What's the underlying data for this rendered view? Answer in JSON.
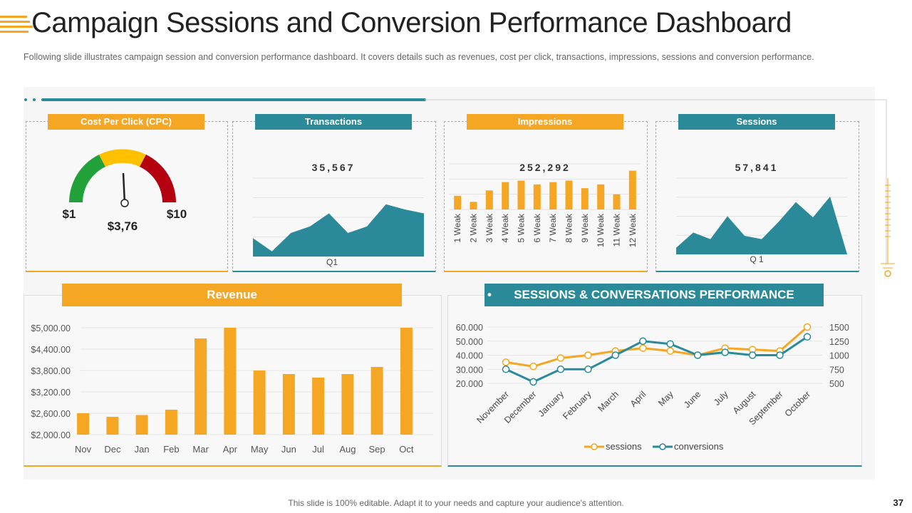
{
  "header": {
    "title": "Campaign Sessions and Conversion Performance Dashboard",
    "subtitle": "Following slide illustrates campaign session and conversion performance dashboard. It covers details such as revenues, cost per click, transactions, impressions, sessions and conversion performance."
  },
  "colors": {
    "orange": "#f5a623",
    "teal": "#2a8a99",
    "green": "#22a03a",
    "yellow": "#ffc000",
    "red": "#b50010"
  },
  "cpc": {
    "label": "Cost Per Click (CPC)",
    "min_label": "$1",
    "max_label": "$10",
    "value_label": "$3,76",
    "gauge_min": 1,
    "gauge_max": 10,
    "gauge_value": 3.76
  },
  "transactions": {
    "label": "Transactions",
    "total": "35,567",
    "x_label": "Q1"
  },
  "impressions": {
    "label": "Impressions",
    "total": "252,292"
  },
  "sessions_card": {
    "label": "Sessions",
    "total": "57,841",
    "x_label": "Q 1"
  },
  "chart_data": [
    {
      "id": "transactions",
      "type": "area",
      "title": "Transactions",
      "x": [
        1,
        2,
        3,
        4,
        5,
        6,
        7,
        8,
        9,
        10
      ],
      "values": [
        14,
        4,
        18,
        23,
        33,
        18,
        23,
        40,
        36,
        33
      ],
      "ylim": [
        0,
        60
      ],
      "xlabel": "Q1"
    },
    {
      "id": "impressions",
      "type": "bar",
      "title": "Impressions",
      "categories": [
        "1 Weak",
        "2 Weak",
        "3 Weak",
        "4 Weak",
        "5 Weak",
        "6 Weak",
        "7 Weak",
        "8 Weak",
        "9 Weak",
        "10 Weak",
        "11 Weak",
        "12 Weak"
      ],
      "values": [
        18,
        10,
        25,
        36,
        38,
        33,
        36,
        38,
        28,
        33,
        20,
        51
      ],
      "ylim": [
        0,
        60
      ]
    },
    {
      "id": "sessions",
      "type": "area",
      "title": "Sessions",
      "x": [
        1,
        2,
        3,
        4,
        5,
        6,
        7,
        8,
        9,
        10,
        11
      ],
      "values": [
        6,
        20,
        14,
        35,
        17,
        14,
        30,
        48,
        34,
        53,
        0
      ],
      "ylim": [
        0,
        70
      ],
      "xlabel": "Q 1"
    },
    {
      "id": "revenue",
      "type": "bar",
      "title": "Revenue",
      "categories": [
        "Nov",
        "Dec",
        "Jan",
        "Feb",
        "Mar",
        "Apr",
        "May",
        "Jun",
        "Jul",
        "Aug",
        "Sep",
        "Oct"
      ],
      "values": [
        2600,
        2500,
        2550,
        2700,
        4700,
        5000,
        3800,
        3700,
        3600,
        3700,
        3900,
        5000
      ],
      "ylim": [
        2000,
        5000
      ],
      "yticks": [
        "$5,000.00",
        "$4,400.00",
        "$3,800.00",
        "$3,200.00",
        "$2,600.00",
        "$2,000.00"
      ]
    },
    {
      "id": "performance",
      "type": "line",
      "title": "SESSIONS & CONVERSATIONS PERFORMANCE",
      "categories": [
        "November",
        "December",
        "January",
        "February",
        "March",
        "April",
        "May",
        "June",
        "July",
        "August",
        "September",
        "October"
      ],
      "series": [
        {
          "name": "sessions",
          "axis": "left",
          "values": [
            35000,
            32000,
            38000,
            40000,
            43000,
            45000,
            43000,
            40000,
            45000,
            44000,
            43000,
            60000
          ]
        },
        {
          "name": "conversions",
          "axis": "right",
          "values": [
            750,
            525,
            750,
            750,
            1000,
            1250,
            1200,
            1000,
            1050,
            1000,
            1000,
            1325
          ]
        }
      ],
      "y_left": {
        "ylim": [
          20000,
          60000
        ],
        "ticks": [
          "60.000",
          "50.000",
          "40.000",
          "30.000",
          "20.000"
        ]
      },
      "y_right": {
        "ylim": [
          500,
          1500
        ],
        "ticks": [
          "1500",
          "1250",
          "1000",
          "750",
          "500"
        ]
      },
      "legend": [
        "sessions",
        "conversions"
      ]
    }
  ],
  "revenue_label": "Revenue",
  "performance_label": "SESSIONS & CONVERSATIONS PERFORMANCE",
  "footer": {
    "note": "This slide is 100% editable. Adapt it to your needs and capture your audience's attention.",
    "page": "37"
  }
}
